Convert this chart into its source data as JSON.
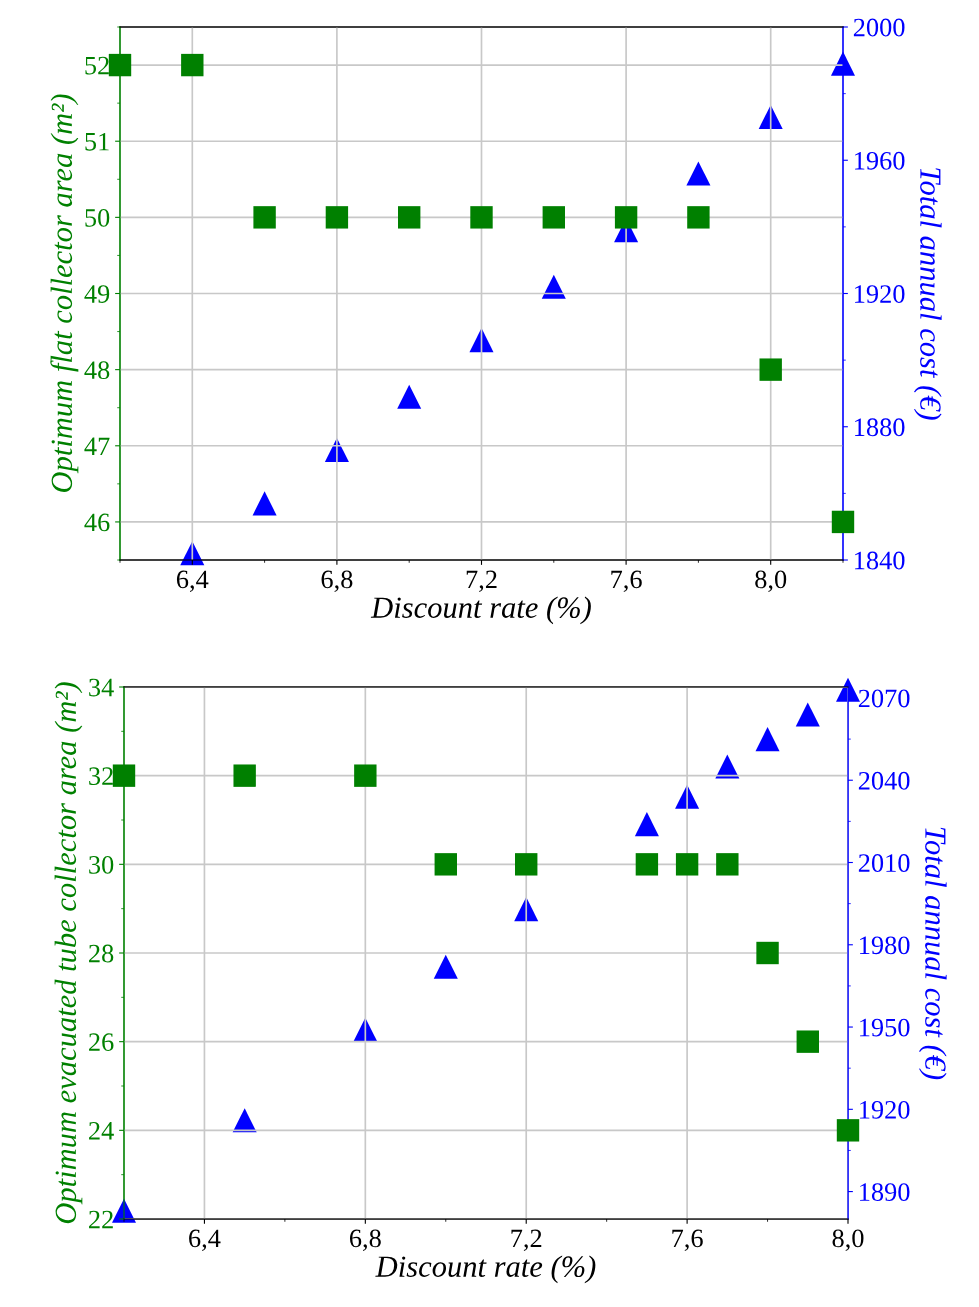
{
  "chart_data": [
    {
      "type": "scatter",
      "xlabel": "Discount rate (%)",
      "ylabel": "Optimum flat collector area (m²)",
      "y2label": "Total annual cost (€)",
      "xlim": [
        6.2,
        8.2
      ],
      "xticks": [
        {
          "value": 6.4,
          "label": "6,4"
        },
        {
          "value": 6.8,
          "label": "6,8"
        },
        {
          "value": 7.2,
          "label": "7,2"
        },
        {
          "value": 7.6,
          "label": "7,6"
        },
        {
          "value": 8.0,
          "label": "8,0"
        }
      ],
      "ylim": [
        45.5,
        52.5
      ],
      "yticks": [
        46,
        47,
        48,
        49,
        50,
        51,
        52
      ],
      "y2lim": [
        1840,
        2000
      ],
      "y2ticks": [
        1840,
        1880,
        1920,
        1960,
        2000
      ],
      "grid": true,
      "series": [
        {
          "color": "#008000",
          "marker": "square",
          "x": [
            6.2,
            6.4,
            6.6,
            6.8,
            7.0,
            7.2,
            7.4,
            7.6,
            7.8,
            8.0,
            8.2
          ],
          "values": [
            52,
            52,
            50,
            50,
            50,
            50,
            50,
            50,
            50,
            48,
            46
          ]
        },
        {
          "color": "#0000ff",
          "marker": "triangle",
          "axis": "y2",
          "x": [
            6.4,
            6.6,
            6.8,
            7.0,
            7.2,
            7.4,
            7.6,
            7.8,
            8.0,
            8.2
          ],
          "values": [
            1842,
            1857,
            1873,
            1889,
            1906,
            1922,
            1939,
            1956,
            1973,
            1989
          ]
        }
      ]
    },
    {
      "type": "scatter",
      "xlabel": "Discount rate (%)",
      "ylabel": "Optimum evacuated tube collector area (m²)",
      "y2label": "Total annual cost (€)",
      "xlim": [
        6.2,
        8.0
      ],
      "xticks": [
        {
          "value": 6.4,
          "label": "6,4"
        },
        {
          "value": 6.8,
          "label": "6,8"
        },
        {
          "value": 7.2,
          "label": "7,2"
        },
        {
          "value": 7.6,
          "label": "7,6"
        },
        {
          "value": 8.0,
          "label": "8,0"
        }
      ],
      "ylim": [
        22,
        34
      ],
      "yticks": [
        22,
        24,
        26,
        28,
        30,
        32,
        34
      ],
      "y2lim": [
        1880,
        2074
      ],
      "y2ticks": [
        1890,
        1920,
        1950,
        1980,
        2010,
        2040,
        2070
      ],
      "grid": true,
      "series": [
        {
          "color": "#008000",
          "marker": "square",
          "x": [
            6.2,
            6.5,
            6.8,
            7.0,
            7.2,
            7.5,
            7.6,
            7.7,
            7.8,
            7.9,
            8.0
          ],
          "values": [
            32,
            32,
            32,
            30,
            30,
            30,
            30,
            30,
            28,
            26,
            24
          ]
        },
        {
          "color": "#0000ff",
          "marker": "triangle",
          "axis": "y2",
          "x": [
            6.2,
            6.5,
            6.8,
            7.0,
            7.2,
            7.5,
            7.6,
            7.7,
            7.8,
            7.9,
            8.0
          ],
          "values": [
            1883,
            1916,
            1949,
            1972,
            1993,
            2024,
            2034,
            2045,
            2055,
            2064,
            2073
          ]
        }
      ]
    }
  ]
}
